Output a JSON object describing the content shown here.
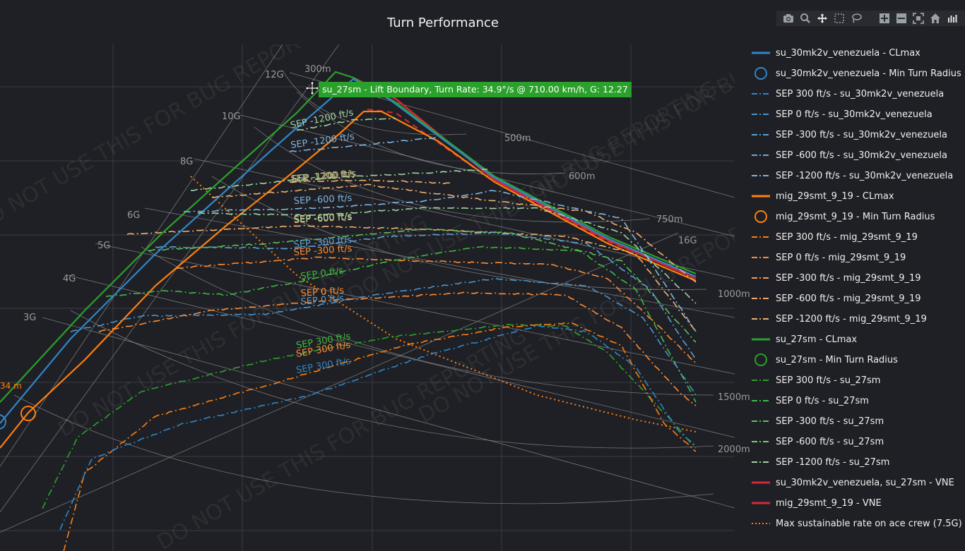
{
  "chart_data": {
    "type": "line",
    "title": "Turn Performance",
    "xlabel": "",
    "ylabel": "",
    "tooltip": "su_27sm - Lift Boundary, Turn Rate: 34.9°/s @ 710.00 km/h, G: 12.27",
    "watermark": "DO NOT USE THIS FOR BUG REPORTING",
    "g_lines": [
      "3G",
      "4G",
      "5G",
      "6G",
      "8G",
      "10G",
      "12G",
      "16G"
    ],
    "radius_lines": [
      "300m",
      "500m",
      "600m",
      "750m",
      "1000m",
      "1500m",
      "2000m"
    ],
    "clipped_label": "34 m",
    "sep_curve_labels": [
      {
        "text": "SEP -1200 ft/s",
        "color": "#9fd49f"
      },
      {
        "text": "SEP -1200 ft/s",
        "color": "#7fb5e0"
      },
      {
        "text": "SEP -1200 ft/s",
        "color": "#f0b070"
      },
      {
        "text": "SEP -1200 ft/s",
        "color": "#9fd49f"
      },
      {
        "text": "SEP -600 ft/s",
        "color": "#7fb5e0"
      },
      {
        "text": "SEP -600 ft/s",
        "color": "#f0b070"
      },
      {
        "text": "SEP -600 ft/s",
        "color": "#9fd49f"
      },
      {
        "text": "SEP -300 ft/s",
        "color": "#5a9fd4"
      },
      {
        "text": "SEP -300 ft/s",
        "color": "#ff8c33"
      },
      {
        "text": "SEP 0 ft/s",
        "color": "#3fb93f"
      },
      {
        "text": "SEP 0 ft/s",
        "color": "#ff8c33"
      },
      {
        "text": "SEP 0 ft/s",
        "color": "#5a9fd4"
      },
      {
        "text": "SEP 300 ft/s",
        "color": "#3fb93f"
      },
      {
        "text": "SEP 300 ft/s",
        "color": "#ff8c33"
      },
      {
        "text": "SEP 300 ft/s",
        "color": "#2f86c8"
      }
    ],
    "legend": [
      {
        "name": "su_30mk2v_venezuela - CLmax",
        "color": "#2f86c8",
        "style": "solid"
      },
      {
        "name": "su_30mk2v_venezuela - Min Turn Radius",
        "color": "#2f86c8",
        "style": "circle"
      },
      {
        "name": "SEP 300 ft/s - su_30mk2v_venezuela",
        "color": "#2f86c8",
        "style": "dashdot"
      },
      {
        "name": "SEP 0 ft/s - su_30mk2v_venezuela",
        "color": "#4a95cf",
        "style": "dashdot"
      },
      {
        "name": "SEP -300 ft/s - su_30mk2v_venezuela",
        "color": "#5a9fd4",
        "style": "dashdot"
      },
      {
        "name": "SEP -600 ft/s - su_30mk2v_venezuela",
        "color": "#6aaad8",
        "style": "dashdot"
      },
      {
        "name": "SEP -1200 ft/s - su_30mk2v_venezuela",
        "color": "#7fb5e0",
        "style": "dashdot"
      },
      {
        "name": "mig_29smt_9_19 - CLmax",
        "color": "#ff7f0e",
        "style": "solid"
      },
      {
        "name": "mig_29smt_9_19 - Min Turn Radius",
        "color": "#ff7f0e",
        "style": "circle"
      },
      {
        "name": "SEP 300 ft/s - mig_29smt_9_19",
        "color": "#ff7f0e",
        "style": "dashdot"
      },
      {
        "name": "SEP 0 ft/s - mig_29smt_9_19",
        "color": "#ff8c33",
        "style": "dashdot"
      },
      {
        "name": "SEP -300 ft/s - mig_29smt_9_19",
        "color": "#f79a4f",
        "style": "dashdot"
      },
      {
        "name": "SEP -600 ft/s - mig_29smt_9_19",
        "color": "#f4a662",
        "style": "dashdot"
      },
      {
        "name": "SEP -1200 ft/s - mig_29smt_9_19",
        "color": "#f0b070",
        "style": "dashdot"
      },
      {
        "name": "su_27sm - CLmax",
        "color": "#2ca02c",
        "style": "solid"
      },
      {
        "name": "su_27sm - Min Turn Radius",
        "color": "#2ca02c",
        "style": "circle"
      },
      {
        "name": "SEP 300 ft/s - su_27sm",
        "color": "#2ca02c",
        "style": "dashdot"
      },
      {
        "name": "SEP 0 ft/s - su_27sm",
        "color": "#3fb93f",
        "style": "dashdot"
      },
      {
        "name": "SEP -300 ft/s - su_27sm",
        "color": "#5cbf5c",
        "style": "dashdot"
      },
      {
        "name": "SEP -600 ft/s - su_27sm",
        "color": "#7cc97c",
        "style": "dashdot"
      },
      {
        "name": "SEP -1200 ft/s - su_27sm",
        "color": "#9fd49f",
        "style": "dashdot"
      },
      {
        "name": "su_30mk2v_venezuela, su_27sm - VNE",
        "color": "#d62738",
        "style": "solid"
      },
      {
        "name": "mig_29smt_9_19 - VNE",
        "color": "#d62738",
        "style": "solid"
      },
      {
        "name": "Max sustainable rate on ace crew (7.5G)",
        "color": "#ff7f0e",
        "style": "dot"
      }
    ]
  }
}
